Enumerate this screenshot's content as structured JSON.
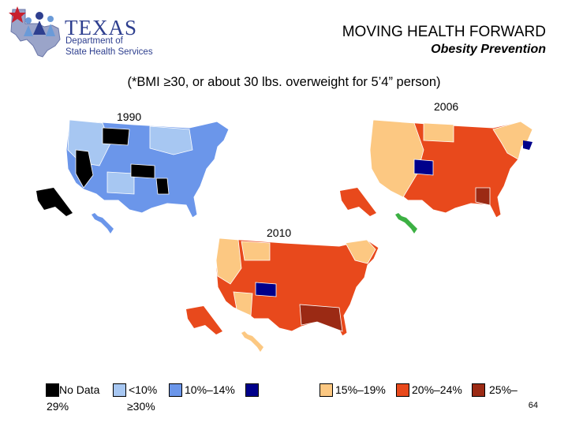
{
  "logo": {
    "name": "TEXAS",
    "line1": "Department of",
    "line2": "State Health Services"
  },
  "header": {
    "title": "MOVING HEALTH FORWARD",
    "subtitle": "Obesity Prevention"
  },
  "note": "(*BMI ≥30, or about 30 lbs. overweight for 5’4” person)",
  "maps": {
    "map1": {
      "year": "1990"
    },
    "map2": {
      "year": "2006"
    },
    "map3": {
      "year": "2010"
    }
  },
  "legend": {
    "items": [
      {
        "label": "No Data",
        "color": "#000000"
      },
      {
        "label": "<10%",
        "color": "#a7c7f2"
      },
      {
        "label": "10%–14%",
        "color": "#6b96ea"
      },
      {
        "label": "",
        "color": "#00008b"
      },
      {
        "label": "15%–19%",
        "color": "#fcc882"
      },
      {
        "label": "20%–24%",
        "color": "#e8491c"
      },
      {
        "label": "25%–",
        "color": "#9b2a14"
      }
    ],
    "wrap1": "29%",
    "wrap2": "≥30%"
  },
  "colors": {
    "lightblue": "#a7c7f2",
    "blue": "#6b96ea",
    "navy": "#00008b",
    "peach": "#fcc882",
    "orange": "#e8491c",
    "darkred": "#9b2a14",
    "green": "#3cb043",
    "black": "#000000"
  },
  "page_number": "64"
}
